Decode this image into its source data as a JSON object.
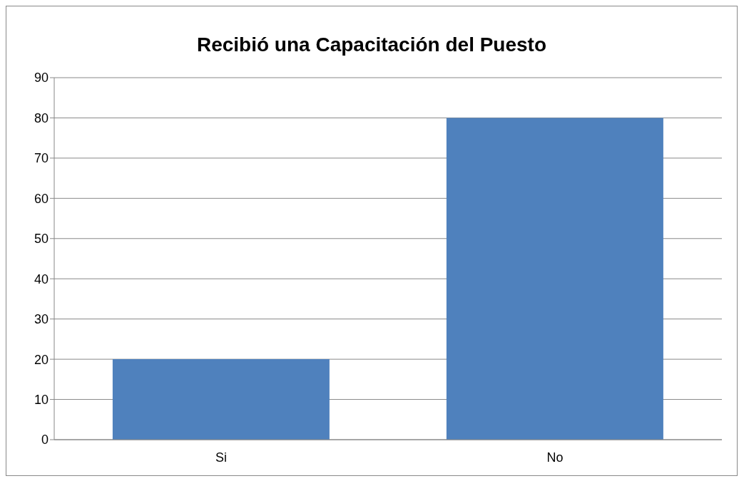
{
  "chart_data": {
    "type": "bar",
    "title": "Recibió una Capacitación del Puesto",
    "categories": [
      "Si",
      "No"
    ],
    "values": [
      20,
      80
    ],
    "color": "#4f81bd",
    "ylim": [
      0,
      90
    ],
    "yticks": [
      0,
      10,
      20,
      30,
      40,
      50,
      60,
      70,
      80,
      90
    ],
    "grid": "y"
  }
}
